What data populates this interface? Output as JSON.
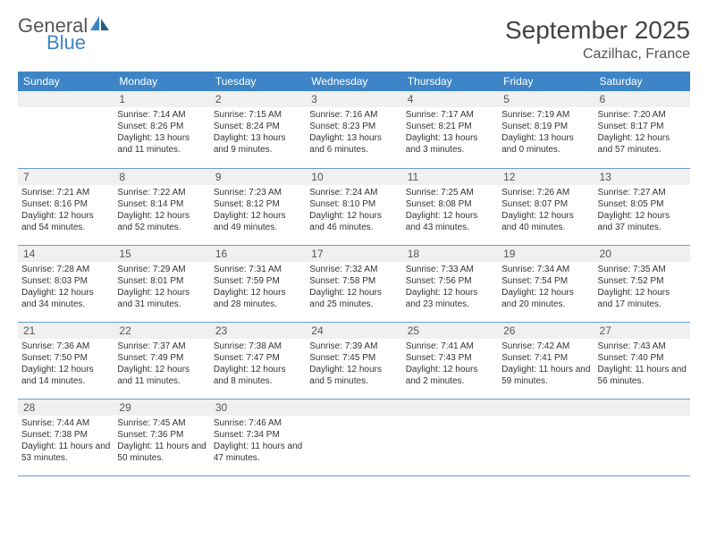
{
  "logo": {
    "text1": "General",
    "text2": "Blue"
  },
  "title": "September 2025",
  "subtitle": "Cazilhac, France",
  "colors": {
    "header_bg": "#3d85c6",
    "header_text": "#ffffff",
    "daynum_bg": "#f0f0f0",
    "line": "#6b9bd1",
    "logo_gray": "#555555",
    "logo_blue": "#3d85c6"
  },
  "weekdays": [
    "Sunday",
    "Monday",
    "Tuesday",
    "Wednesday",
    "Thursday",
    "Friday",
    "Saturday"
  ],
  "weeks": [
    [
      {
        "n": "",
        "sr": "",
        "ss": "",
        "dl": ""
      },
      {
        "n": "1",
        "sr": "Sunrise: 7:14 AM",
        "ss": "Sunset: 8:26 PM",
        "dl": "Daylight: 13 hours and 11 minutes."
      },
      {
        "n": "2",
        "sr": "Sunrise: 7:15 AM",
        "ss": "Sunset: 8:24 PM",
        "dl": "Daylight: 13 hours and 9 minutes."
      },
      {
        "n": "3",
        "sr": "Sunrise: 7:16 AM",
        "ss": "Sunset: 8:23 PM",
        "dl": "Daylight: 13 hours and 6 minutes."
      },
      {
        "n": "4",
        "sr": "Sunrise: 7:17 AM",
        "ss": "Sunset: 8:21 PM",
        "dl": "Daylight: 13 hours and 3 minutes."
      },
      {
        "n": "5",
        "sr": "Sunrise: 7:19 AM",
        "ss": "Sunset: 8:19 PM",
        "dl": "Daylight: 13 hours and 0 minutes."
      },
      {
        "n": "6",
        "sr": "Sunrise: 7:20 AM",
        "ss": "Sunset: 8:17 PM",
        "dl": "Daylight: 12 hours and 57 minutes."
      }
    ],
    [
      {
        "n": "7",
        "sr": "Sunrise: 7:21 AM",
        "ss": "Sunset: 8:16 PM",
        "dl": "Daylight: 12 hours and 54 minutes."
      },
      {
        "n": "8",
        "sr": "Sunrise: 7:22 AM",
        "ss": "Sunset: 8:14 PM",
        "dl": "Daylight: 12 hours and 52 minutes."
      },
      {
        "n": "9",
        "sr": "Sunrise: 7:23 AM",
        "ss": "Sunset: 8:12 PM",
        "dl": "Daylight: 12 hours and 49 minutes."
      },
      {
        "n": "10",
        "sr": "Sunrise: 7:24 AM",
        "ss": "Sunset: 8:10 PM",
        "dl": "Daylight: 12 hours and 46 minutes."
      },
      {
        "n": "11",
        "sr": "Sunrise: 7:25 AM",
        "ss": "Sunset: 8:08 PM",
        "dl": "Daylight: 12 hours and 43 minutes."
      },
      {
        "n": "12",
        "sr": "Sunrise: 7:26 AM",
        "ss": "Sunset: 8:07 PM",
        "dl": "Daylight: 12 hours and 40 minutes."
      },
      {
        "n": "13",
        "sr": "Sunrise: 7:27 AM",
        "ss": "Sunset: 8:05 PM",
        "dl": "Daylight: 12 hours and 37 minutes."
      }
    ],
    [
      {
        "n": "14",
        "sr": "Sunrise: 7:28 AM",
        "ss": "Sunset: 8:03 PM",
        "dl": "Daylight: 12 hours and 34 minutes."
      },
      {
        "n": "15",
        "sr": "Sunrise: 7:29 AM",
        "ss": "Sunset: 8:01 PM",
        "dl": "Daylight: 12 hours and 31 minutes."
      },
      {
        "n": "16",
        "sr": "Sunrise: 7:31 AM",
        "ss": "Sunset: 7:59 PM",
        "dl": "Daylight: 12 hours and 28 minutes."
      },
      {
        "n": "17",
        "sr": "Sunrise: 7:32 AM",
        "ss": "Sunset: 7:58 PM",
        "dl": "Daylight: 12 hours and 25 minutes."
      },
      {
        "n": "18",
        "sr": "Sunrise: 7:33 AM",
        "ss": "Sunset: 7:56 PM",
        "dl": "Daylight: 12 hours and 23 minutes."
      },
      {
        "n": "19",
        "sr": "Sunrise: 7:34 AM",
        "ss": "Sunset: 7:54 PM",
        "dl": "Daylight: 12 hours and 20 minutes."
      },
      {
        "n": "20",
        "sr": "Sunrise: 7:35 AM",
        "ss": "Sunset: 7:52 PM",
        "dl": "Daylight: 12 hours and 17 minutes."
      }
    ],
    [
      {
        "n": "21",
        "sr": "Sunrise: 7:36 AM",
        "ss": "Sunset: 7:50 PM",
        "dl": "Daylight: 12 hours and 14 minutes."
      },
      {
        "n": "22",
        "sr": "Sunrise: 7:37 AM",
        "ss": "Sunset: 7:49 PM",
        "dl": "Daylight: 12 hours and 11 minutes."
      },
      {
        "n": "23",
        "sr": "Sunrise: 7:38 AM",
        "ss": "Sunset: 7:47 PM",
        "dl": "Daylight: 12 hours and 8 minutes."
      },
      {
        "n": "24",
        "sr": "Sunrise: 7:39 AM",
        "ss": "Sunset: 7:45 PM",
        "dl": "Daylight: 12 hours and 5 minutes."
      },
      {
        "n": "25",
        "sr": "Sunrise: 7:41 AM",
        "ss": "Sunset: 7:43 PM",
        "dl": "Daylight: 12 hours and 2 minutes."
      },
      {
        "n": "26",
        "sr": "Sunrise: 7:42 AM",
        "ss": "Sunset: 7:41 PM",
        "dl": "Daylight: 11 hours and 59 minutes."
      },
      {
        "n": "27",
        "sr": "Sunrise: 7:43 AM",
        "ss": "Sunset: 7:40 PM",
        "dl": "Daylight: 11 hours and 56 minutes."
      }
    ],
    [
      {
        "n": "28",
        "sr": "Sunrise: 7:44 AM",
        "ss": "Sunset: 7:38 PM",
        "dl": "Daylight: 11 hours and 53 minutes."
      },
      {
        "n": "29",
        "sr": "Sunrise: 7:45 AM",
        "ss": "Sunset: 7:36 PM",
        "dl": "Daylight: 11 hours and 50 minutes."
      },
      {
        "n": "30",
        "sr": "Sunrise: 7:46 AM",
        "ss": "Sunset: 7:34 PM",
        "dl": "Daylight: 11 hours and 47 minutes."
      },
      {
        "n": "",
        "sr": "",
        "ss": "",
        "dl": ""
      },
      {
        "n": "",
        "sr": "",
        "ss": "",
        "dl": ""
      },
      {
        "n": "",
        "sr": "",
        "ss": "",
        "dl": ""
      },
      {
        "n": "",
        "sr": "",
        "ss": "",
        "dl": ""
      }
    ]
  ]
}
